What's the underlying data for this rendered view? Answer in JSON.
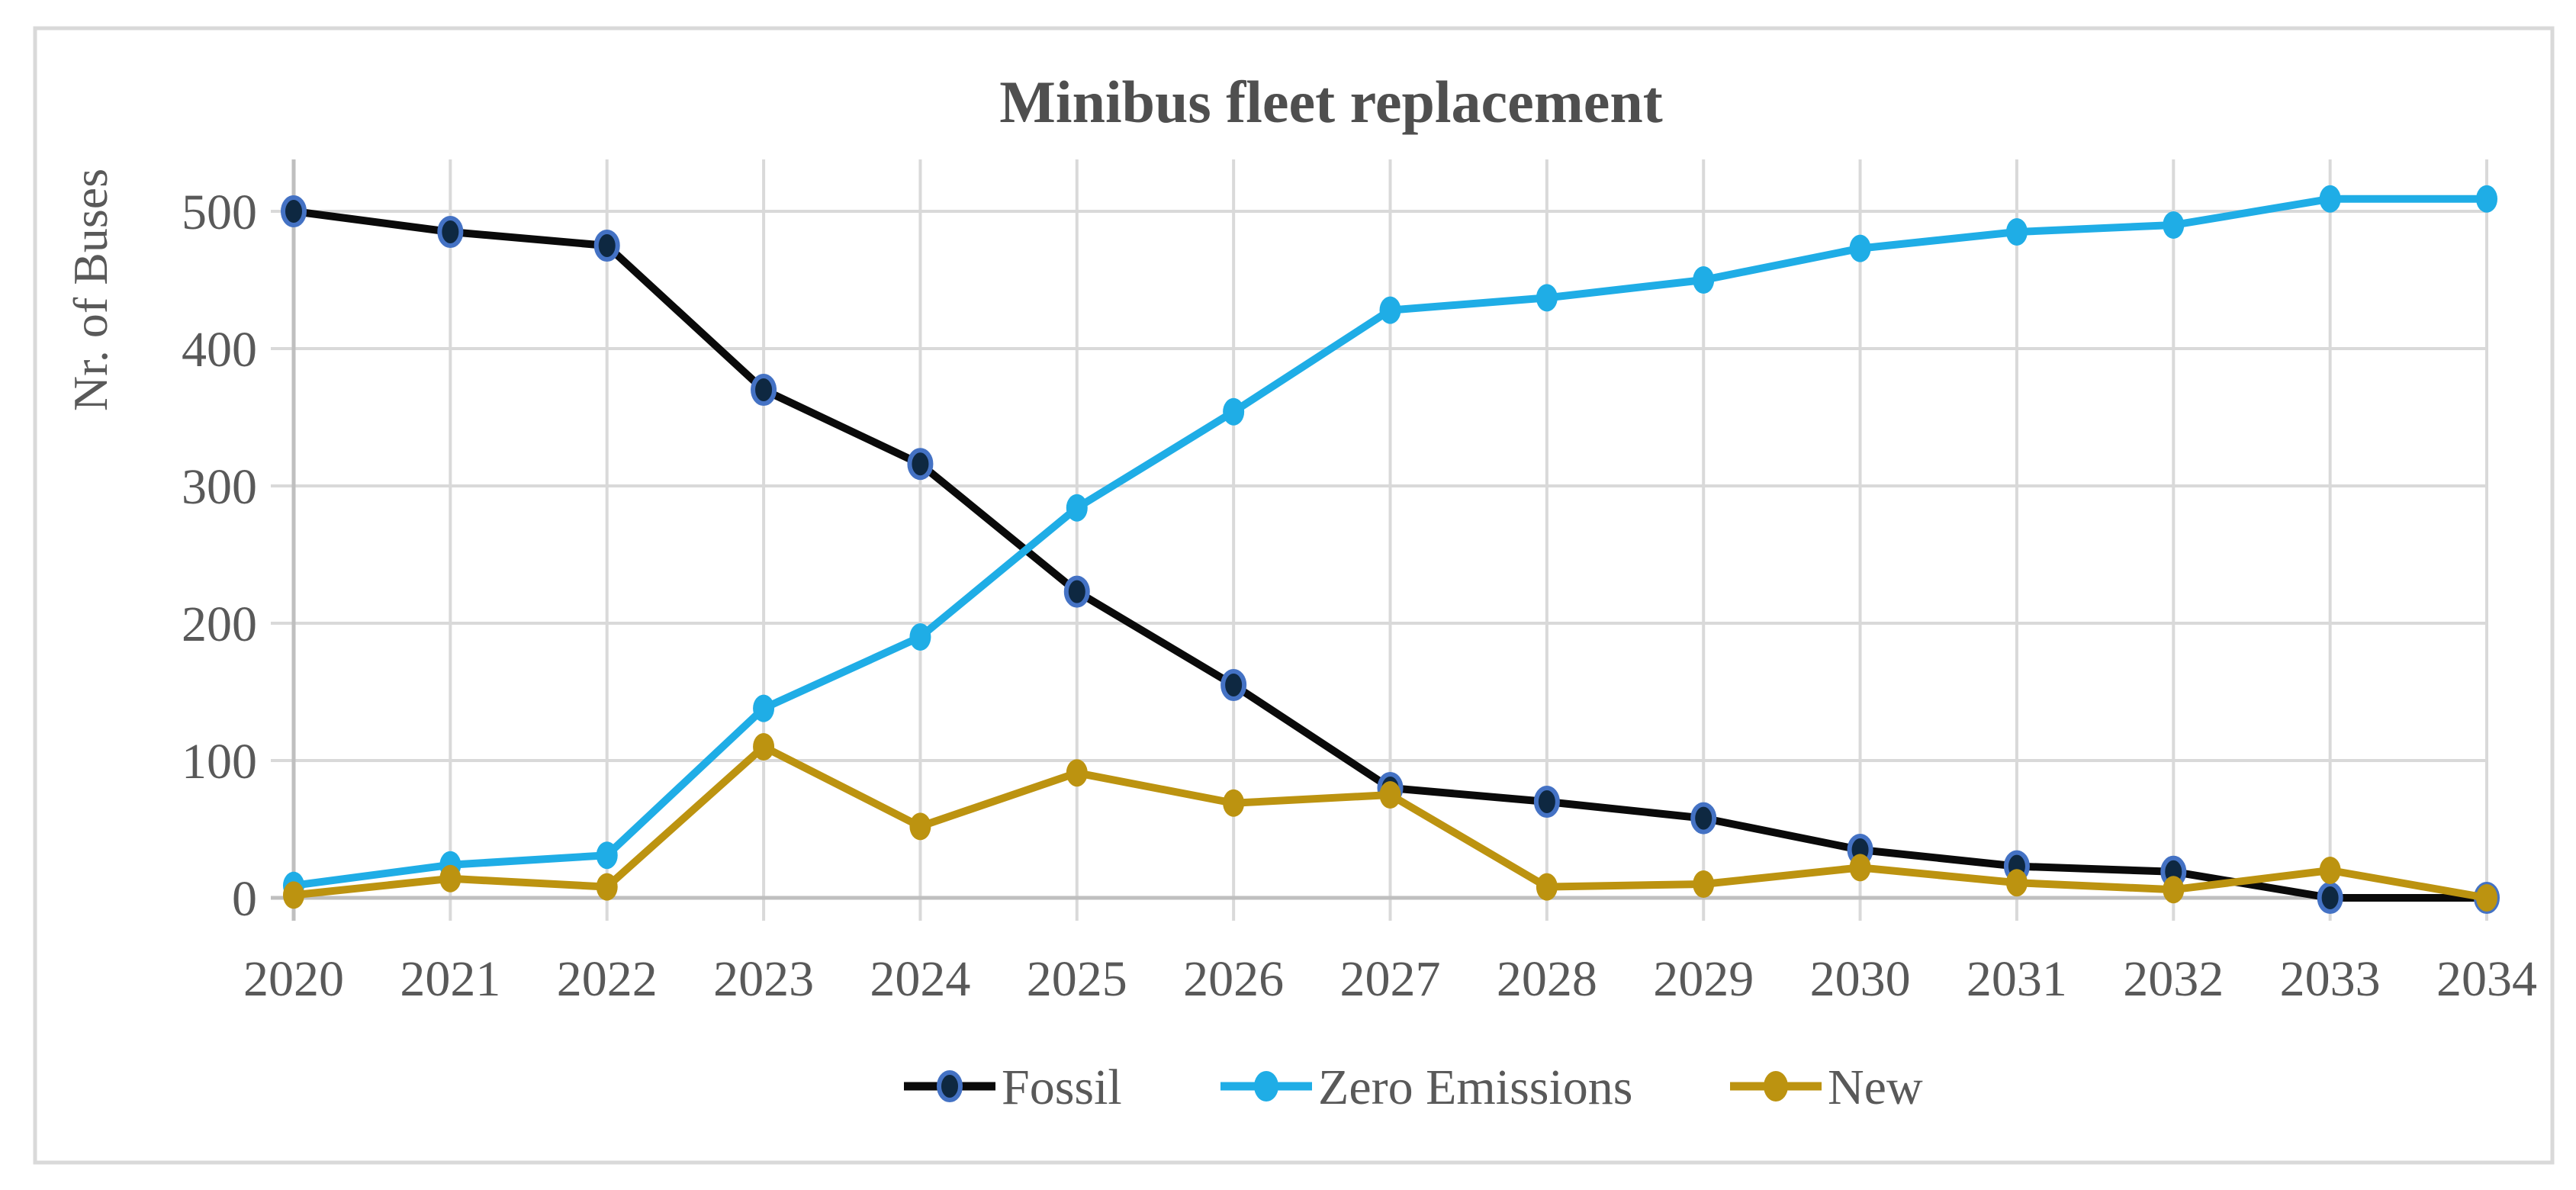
{
  "figure": {
    "title": "Minibus fleet replacement",
    "y_axis_title": "Nr. of Buses",
    "colors": {
      "background": "#FFFFFF",
      "figure_border": "#D9D9D9",
      "gridline": "#D9D9D9",
      "axis_line": "#BFBFBF",
      "text": "#595959",
      "title_text": "#4F4F4F"
    }
  },
  "chart_data": {
    "type": "line",
    "title": "Minibus fleet replacement",
    "xlabel": "",
    "ylabel": "Nr. of Buses",
    "x": [
      "2020",
      "2021",
      "2022",
      "2023",
      "2024",
      "2025",
      "2026",
      "2027",
      "2028",
      "2029",
      "2030",
      "2031",
      "2032",
      "2033",
      "2034"
    ],
    "yticks": [
      "0",
      "100",
      "200",
      "300",
      "400",
      "500"
    ],
    "ylim": [
      0,
      540
    ],
    "grid": true,
    "legend_position": "bottom",
    "series": [
      {
        "name": "Fossil",
        "line_color": "#0A0A0A",
        "marker_fill": "#0E2841",
        "marker_stroke": "#4472C4",
        "values": [
          500,
          485,
          475,
          370,
          316,
          223,
          155,
          80,
          70,
          58,
          35,
          23,
          19,
          0,
          0
        ]
      },
      {
        "name": "Zero Emissions",
        "line_color": "#1FADE6",
        "marker_fill": "#1FADE6",
        "marker_stroke": "#1FADE6",
        "values": [
          9,
          24,
          31,
          138,
          190,
          284,
          354,
          428,
          437,
          450,
          473,
          485,
          490,
          509,
          509
        ]
      },
      {
        "name": "New",
        "line_color": "#BC9310",
        "marker_fill": "#BC9310",
        "marker_stroke": "#BC9310",
        "values": [
          2,
          14,
          8,
          110,
          52,
          91,
          69,
          75,
          8,
          10,
          22,
          11,
          6,
          20,
          0
        ]
      }
    ]
  }
}
